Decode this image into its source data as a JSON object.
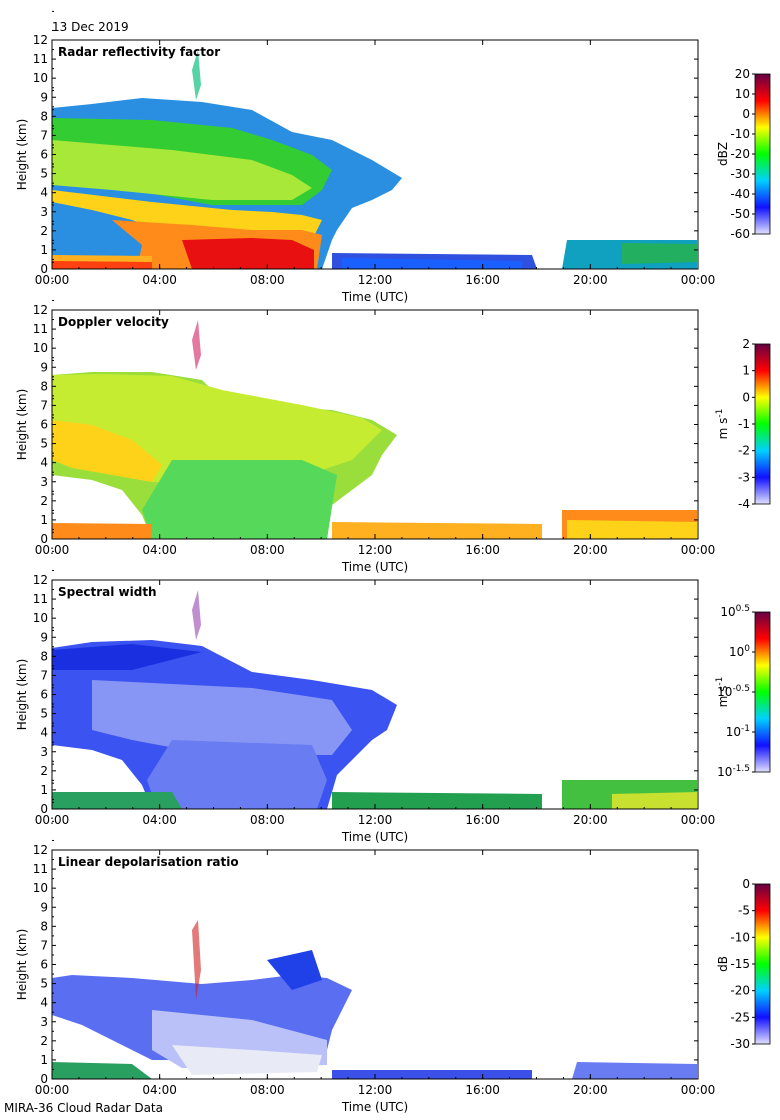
{
  "date_label": "13 Dec 2019",
  "footer": "MIRA-36 Cloud Radar Data",
  "chart_data": [
    {
      "type": "heatmap",
      "title": "Radar reflectivity factor",
      "xlabel": "Time (UTC)",
      "ylabel": "Height (km)",
      "x_ticks": [
        "00:00",
        "04:00",
        "08:00",
        "12:00",
        "16:00",
        "20:00",
        "00:00"
      ],
      "y_ticks": [
        "0",
        "1",
        "2",
        "3",
        "4",
        "5",
        "6",
        "7",
        "8",
        "9",
        "10",
        "11",
        "12"
      ],
      "ylim": [
        0,
        12
      ],
      "colorbar": {
        "label": "dBZ",
        "ticks": [
          "20",
          "10",
          "0",
          "-10",
          "-20",
          "-30",
          "-40",
          "-50",
          "-60"
        ],
        "range": [
          -60,
          20
        ],
        "colors": [
          "#e0e0ff",
          "#1010ff",
          "#00d0ff",
          "#00ff00",
          "#ffff00",
          "#ff0000",
          "#660044"
        ]
      }
    },
    {
      "type": "heatmap",
      "title": "Doppler velocity",
      "xlabel": "Time (UTC)",
      "ylabel": "Height (km)",
      "x_ticks": [
        "00:00",
        "04:00",
        "08:00",
        "12:00",
        "16:00",
        "20:00",
        "00:00"
      ],
      "y_ticks": [
        "0",
        "1",
        "2",
        "3",
        "4",
        "5",
        "6",
        "7",
        "8",
        "9",
        "10",
        "11",
        "12"
      ],
      "ylim": [
        0,
        12
      ],
      "colorbar": {
        "label": "m s",
        "label_sup": "-1",
        "ticks": [
          "2",
          "1",
          "0",
          "-1",
          "-2",
          "-3",
          "-4"
        ],
        "range": [
          -4,
          2
        ],
        "colors": [
          "#e0e0ff",
          "#1010ff",
          "#00d0ff",
          "#00ff00",
          "#ffff00",
          "#ff0000",
          "#660044"
        ]
      }
    },
    {
      "type": "heatmap",
      "title": "Spectral width",
      "xlabel": "Time (UTC)",
      "ylabel": "Height (km)",
      "x_ticks": [
        "00:00",
        "04:00",
        "08:00",
        "12:00",
        "16:00",
        "20:00",
        "00:00"
      ],
      "y_ticks": [
        "0",
        "1",
        "2",
        "3",
        "4",
        "5",
        "6",
        "7",
        "8",
        "9",
        "10",
        "11",
        "12"
      ],
      "ylim": [
        0,
        12
      ],
      "colorbar": {
        "label": "m s",
        "label_sup": "-1",
        "ticks": [
          {
            "base": "10",
            "exp": "0.5"
          },
          {
            "base": "10",
            "exp": "0"
          },
          {
            "base": "10",
            "exp": "-0.5"
          },
          {
            "base": "10",
            "exp": "-1"
          },
          {
            "base": "10",
            "exp": "-1.5"
          }
        ],
        "range": [
          -1.5,
          0.5
        ],
        "colors": [
          "#e0e0ff",
          "#1010ff",
          "#00d0ff",
          "#00ff00",
          "#ffff00",
          "#ff0000",
          "#660044"
        ]
      }
    },
    {
      "type": "heatmap",
      "title": "Linear depolarisation ratio",
      "xlabel": "Time (UTC)",
      "ylabel": "Height (km)",
      "x_ticks": [
        "00:00",
        "04:00",
        "08:00",
        "12:00",
        "16:00",
        "20:00",
        "00:00"
      ],
      "y_ticks": [
        "0",
        "1",
        "2",
        "3",
        "4",
        "5",
        "6",
        "7",
        "8",
        "9",
        "10",
        "11",
        "12"
      ],
      "ylim": [
        0,
        12
      ],
      "colorbar": {
        "label": "dB",
        "ticks": [
          "0",
          "-5",
          "-10",
          "-15",
          "-20",
          "-25",
          "-30"
        ],
        "range": [
          -30,
          0
        ],
        "colors": [
          "#e0e0ff",
          "#1010ff",
          "#00d0ff",
          "#00ff00",
          "#ffff00",
          "#ff0000",
          "#660044"
        ]
      }
    }
  ]
}
